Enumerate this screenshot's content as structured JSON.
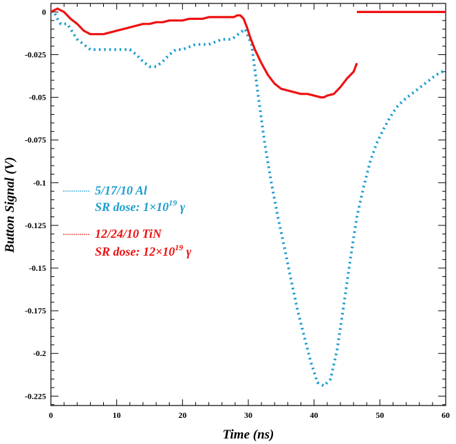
{
  "chart_data": {
    "type": "line",
    "xlabel": "Time (ns)",
    "ylabel": "Button Signal (V)",
    "xlim": [
      0,
      60
    ],
    "ylim": [
      -0.2305,
      0.005
    ],
    "x_ticks": [
      "0",
      "10",
      "20",
      "30",
      "40",
      "50",
      "60"
    ],
    "y_ticks": [
      "0",
      "-0.025",
      "-0.05",
      "-0.075",
      "-0.1",
      "-0.125",
      "-0.15",
      "-0.175",
      "-0.2",
      "-0.225"
    ],
    "grid": false,
    "legend_position": "left-middle",
    "series": [
      {
        "name": "5/17/10 Al",
        "legend_line2": "SR dose: 1×10",
        "legend_sup": "19",
        "legend_suffix": " γ",
        "color": "#1e9ecf",
        "style": "dotted",
        "x": [
          0,
          0.5,
          1.0,
          1.5,
          2.5,
          3.0,
          4.0,
          5.0,
          6.0,
          7.0,
          8.0,
          10.0,
          11.0,
          12.0,
          13.0,
          14.0,
          15.0,
          16.0,
          17.0,
          18.0,
          19.0,
          20.0,
          22.0,
          24.0,
          26.0,
          27.5,
          28.5,
          29.5,
          30.5,
          31.5,
          32.5,
          33.5,
          34.5,
          35.5,
          36.5,
          37.5,
          38.5,
          39.5,
          40.5,
          41.5,
          42.5,
          43.5,
          44.5,
          45.5,
          46.5,
          47.5,
          48.5,
          49.5,
          50.5,
          51.5,
          52.5,
          53.5,
          54.5,
          55.5,
          56.5,
          57.5,
          58.5,
          59.5,
          60.0
        ],
        "y": [
          0,
          0,
          -0.004,
          -0.007,
          -0.007,
          -0.01,
          -0.016,
          -0.019,
          -0.022,
          -0.022,
          -0.022,
          -0.022,
          -0.022,
          -0.022,
          -0.025,
          -0.029,
          -0.032,
          -0.032,
          -0.029,
          -0.025,
          -0.022,
          -0.022,
          -0.019,
          -0.019,
          -0.016,
          -0.016,
          -0.013,
          -0.01,
          -0.019,
          -0.049,
          -0.077,
          -0.1,
          -0.12,
          -0.138,
          -0.157,
          -0.175,
          -0.19,
          -0.205,
          -0.217,
          -0.219,
          -0.215,
          -0.198,
          -0.172,
          -0.145,
          -0.12,
          -0.103,
          -0.088,
          -0.077,
          -0.069,
          -0.062,
          -0.056,
          -0.052,
          -0.049,
          -0.046,
          -0.043,
          -0.04,
          -0.037,
          -0.035,
          -0.035
        ]
      },
      {
        "name": "12/24/10 TiN",
        "legend_line2": "SR dose: 12×10",
        "legend_sup": "19",
        "legend_suffix": " γ",
        "color": "#ee1111",
        "style": "solid",
        "x": [
          0,
          0.5,
          1.0,
          2.0,
          3.0,
          4.0,
          5.0,
          6.0,
          7.0,
          8.0,
          9.0,
          10.0,
          11.0,
          12.0,
          13.0,
          14.0,
          15.0,
          16.0,
          17.0,
          18.0,
          19.0,
          20.0,
          21.0,
          22.0,
          23.0,
          24.0,
          25.0,
          26.0,
          27.0,
          27.8,
          28.3,
          28.8,
          29.3,
          29.8,
          30.3,
          31.0,
          32.0,
          33.0,
          34.0,
          35.0,
          36.0,
          37.0,
          38.0,
          39.0,
          40.0,
          41.0,
          41.5,
          42.0,
          43.0,
          44.0,
          45.0,
          46.0,
          46.5
        ],
        "y": [
          0,
          0.001,
          0.002,
          0.0,
          -0.004,
          -0.007,
          -0.011,
          -0.013,
          -0.013,
          -0.013,
          -0.012,
          -0.011,
          -0.01,
          -0.009,
          -0.008,
          -0.007,
          -0.007,
          -0.006,
          -0.006,
          -0.005,
          -0.005,
          -0.005,
          -0.004,
          -0.004,
          -0.004,
          -0.003,
          -0.003,
          -0.003,
          -0.003,
          -0.003,
          -0.002,
          -0.002,
          -0.004,
          -0.009,
          -0.015,
          -0.022,
          -0.03,
          -0.037,
          -0.042,
          -0.045,
          -0.046,
          -0.047,
          -0.048,
          -0.048,
          -0.049,
          -0.05,
          -0.05,
          -0.049,
          -0.048,
          -0.044,
          -0.039,
          -0.035,
          -0.03
        ]
      },
      {
        "color": "#ee1111",
        "style": "solid",
        "x": [
          46.5,
          60.0
        ],
        "y": [
          0,
          0
        ]
      }
    ]
  }
}
